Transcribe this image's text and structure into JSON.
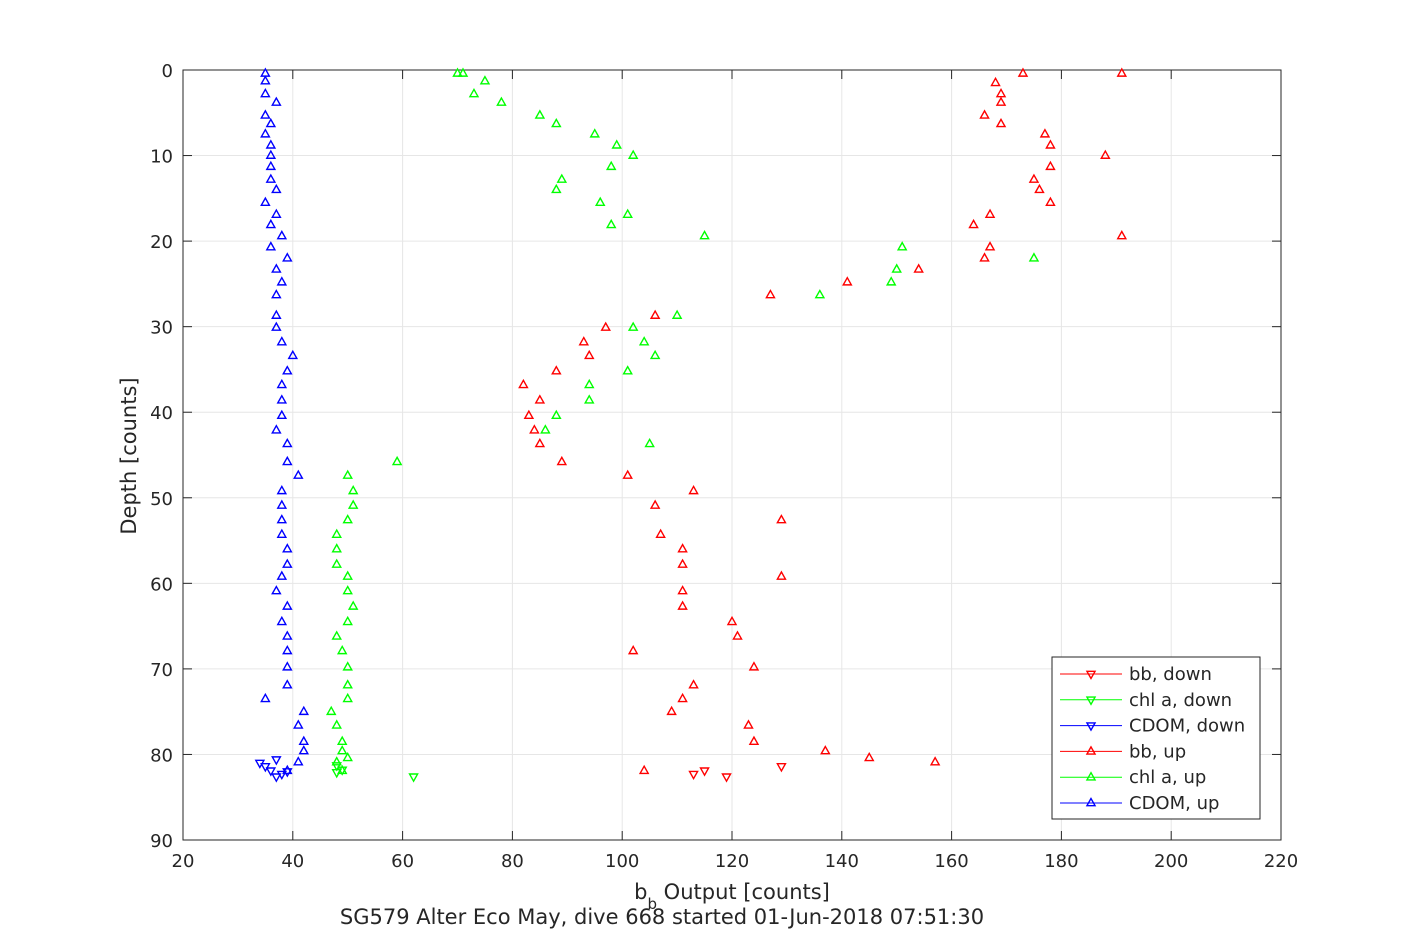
{
  "chart_data": {
    "type": "scatter",
    "title": "",
    "caption": "SG579 Alter Eco May, dive 668 started 01-Jun-2018 07:51:30",
    "xlabel": {
      "main": "b",
      "sub": "b",
      "rest": " Output [counts]"
    },
    "ylabel": "Depth [counts]",
    "xlim": [
      20,
      220
    ],
    "ylim": [
      0,
      90
    ],
    "y_reversed": true,
    "xticks": [
      "20",
      "40",
      "60",
      "80",
      "100",
      "120",
      "140",
      "160",
      "180",
      "200",
      "220"
    ],
    "yticks": [
      "0",
      "10",
      "20",
      "30",
      "40",
      "50",
      "60",
      "70",
      "80",
      "90"
    ],
    "grid": true,
    "legend_position": "lower-right",
    "series": [
      {
        "name": "bb, down",
        "color": "#ff0000",
        "marker": "triangle-down",
        "points": [
          [
            129,
            81.4
          ],
          [
            119,
            82.6
          ],
          [
            115,
            81.9
          ],
          [
            113,
            82.3
          ]
        ]
      },
      {
        "name": "chl a, down",
        "color": "#00ff00",
        "marker": "triangle-down",
        "points": [
          [
            48,
            81.3
          ],
          [
            62,
            82.6
          ],
          [
            48,
            82.1
          ],
          [
            49,
            81.8
          ]
        ]
      },
      {
        "name": "CDOM, down",
        "color": "#0000ff",
        "marker": "triangle-down",
        "points": [
          [
            37,
            80.6
          ],
          [
            34,
            81.0
          ],
          [
            35,
            81.4
          ],
          [
            36,
            81.9
          ],
          [
            37,
            82.6
          ],
          [
            38,
            82.3
          ],
          [
            39,
            82.0
          ]
        ]
      },
      {
        "name": "bb, up",
        "color": "#ff0000",
        "marker": "triangle-up",
        "points": [
          [
            191,
            0.4
          ],
          [
            173,
            0.4
          ],
          [
            168,
            1.5
          ],
          [
            169,
            2.8
          ],
          [
            169,
            3.8
          ],
          [
            166,
            5.3
          ],
          [
            169,
            6.3
          ],
          [
            177,
            7.5
          ],
          [
            178,
            8.8
          ],
          [
            188,
            10.0
          ],
          [
            178,
            11.3
          ],
          [
            175,
            12.8
          ],
          [
            176,
            14.0
          ],
          [
            178,
            15.5
          ],
          [
            167,
            16.9
          ],
          [
            164,
            18.1
          ],
          [
            191,
            19.4
          ],
          [
            167,
            20.7
          ],
          [
            166,
            22.0
          ],
          [
            154,
            23.3
          ],
          [
            141,
            24.8
          ],
          [
            127,
            26.3
          ],
          [
            106,
            28.7
          ],
          [
            97,
            30.1
          ],
          [
            93,
            31.8
          ],
          [
            94,
            33.4
          ],
          [
            88,
            35.2
          ],
          [
            82,
            36.8
          ],
          [
            85,
            38.6
          ],
          [
            83,
            40.4
          ],
          [
            84,
            42.1
          ],
          [
            85,
            43.7
          ],
          [
            89,
            45.8
          ],
          [
            101,
            47.4
          ],
          [
            113,
            49.2
          ],
          [
            106,
            50.9
          ],
          [
            129,
            52.6
          ],
          [
            107,
            54.3
          ],
          [
            111,
            56.0
          ],
          [
            111,
            57.8
          ],
          [
            129,
            59.2
          ],
          [
            111,
            60.9
          ],
          [
            111,
            62.7
          ],
          [
            120,
            64.5
          ],
          [
            121,
            66.2
          ],
          [
            102,
            67.9
          ],
          [
            124,
            69.8
          ],
          [
            113,
            71.9
          ],
          [
            111,
            73.5
          ],
          [
            109,
            75.0
          ],
          [
            123,
            76.6
          ],
          [
            124,
            78.5
          ],
          [
            137,
            79.6
          ],
          [
            145,
            80.4
          ],
          [
            157,
            80.9
          ],
          [
            104,
            81.9
          ]
        ]
      },
      {
        "name": "chl a, up",
        "color": "#00ff00",
        "marker": "triangle-up",
        "points": [
          [
            70,
            0.4
          ],
          [
            71,
            0.4
          ],
          [
            75,
            1.3
          ],
          [
            73,
            2.8
          ],
          [
            78,
            3.8
          ],
          [
            85,
            5.3
          ],
          [
            88,
            6.3
          ],
          [
            95,
            7.5
          ],
          [
            99,
            8.8
          ],
          [
            102,
            10.0
          ],
          [
            98,
            11.3
          ],
          [
            89,
            12.8
          ],
          [
            88,
            14.0
          ],
          [
            96,
            15.5
          ],
          [
            101,
            16.9
          ],
          [
            98,
            18.1
          ],
          [
            115,
            19.4
          ],
          [
            151,
            20.7
          ],
          [
            175,
            22.0
          ],
          [
            150,
            23.3
          ],
          [
            149,
            24.8
          ],
          [
            136,
            26.3
          ],
          [
            110,
            28.7
          ],
          [
            102,
            30.1
          ],
          [
            104,
            31.8
          ],
          [
            106,
            33.4
          ],
          [
            101,
            35.2
          ],
          [
            94,
            36.8
          ],
          [
            94,
            38.6
          ],
          [
            88,
            40.4
          ],
          [
            86,
            42.1
          ],
          [
            105,
            43.7
          ],
          [
            59,
            45.8
          ],
          [
            50,
            47.4
          ],
          [
            51,
            49.2
          ],
          [
            51,
            50.9
          ],
          [
            50,
            52.6
          ],
          [
            48,
            54.3
          ],
          [
            48,
            56.0
          ],
          [
            48,
            57.8
          ],
          [
            50,
            59.2
          ],
          [
            50,
            60.9
          ],
          [
            51,
            62.7
          ],
          [
            50,
            64.5
          ],
          [
            48,
            66.2
          ],
          [
            49,
            67.9
          ],
          [
            50,
            69.8
          ],
          [
            50,
            71.9
          ],
          [
            50,
            73.5
          ],
          [
            47,
            75.0
          ],
          [
            48,
            76.6
          ],
          [
            49,
            78.5
          ],
          [
            49,
            79.6
          ],
          [
            50,
            80.4
          ],
          [
            48,
            80.9
          ],
          [
            49,
            81.9
          ]
        ]
      },
      {
        "name": "CDOM, up",
        "color": "#0000ff",
        "marker": "triangle-up",
        "points": [
          [
            35,
            0.4
          ],
          [
            35,
            1.3
          ],
          [
            35,
            2.8
          ],
          [
            37,
            3.8
          ],
          [
            35,
            5.3
          ],
          [
            36,
            6.3
          ],
          [
            35,
            7.5
          ],
          [
            36,
            8.8
          ],
          [
            36,
            10.0
          ],
          [
            36,
            11.3
          ],
          [
            36,
            12.8
          ],
          [
            37,
            14.0
          ],
          [
            35,
            15.5
          ],
          [
            37,
            16.9
          ],
          [
            36,
            18.1
          ],
          [
            38,
            19.4
          ],
          [
            36,
            20.7
          ],
          [
            39,
            22.0
          ],
          [
            37,
            23.3
          ],
          [
            38,
            24.8
          ],
          [
            37,
            26.3
          ],
          [
            37,
            28.7
          ],
          [
            37,
            30.1
          ],
          [
            38,
            31.8
          ],
          [
            40,
            33.4
          ],
          [
            39,
            35.2
          ],
          [
            38,
            36.8
          ],
          [
            38,
            38.6
          ],
          [
            38,
            40.4
          ],
          [
            37,
            42.1
          ],
          [
            39,
            43.7
          ],
          [
            39,
            45.8
          ],
          [
            41,
            47.4
          ],
          [
            38,
            49.2
          ],
          [
            38,
            50.9
          ],
          [
            38,
            52.6
          ],
          [
            38,
            54.3
          ],
          [
            39,
            56.0
          ],
          [
            39,
            57.8
          ],
          [
            38,
            59.2
          ],
          [
            37,
            60.9
          ],
          [
            39,
            62.7
          ],
          [
            38,
            64.5
          ],
          [
            39,
            66.2
          ],
          [
            39,
            67.9
          ],
          [
            39,
            69.8
          ],
          [
            39,
            71.9
          ],
          [
            35,
            73.5
          ],
          [
            42,
            75.0
          ],
          [
            41,
            76.6
          ],
          [
            42,
            78.5
          ],
          [
            42,
            79.6
          ],
          [
            41,
            80.9
          ],
          [
            39,
            81.9
          ]
        ]
      }
    ]
  }
}
